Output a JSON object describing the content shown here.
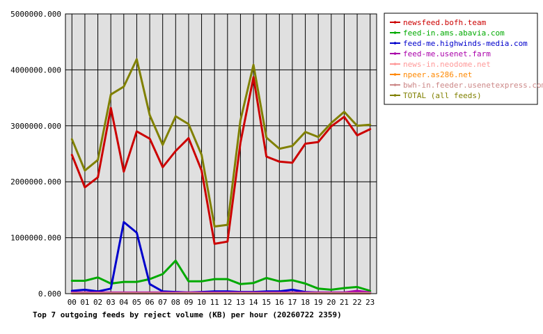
{
  "chart_data": {
    "type": "line",
    "title": "Top 7 outgoing feeds by reject volume (KB) per hour (20260722 2359)",
    "xlabel": "",
    "ylabel": "",
    "ylim": [
      0,
      5000000
    ],
    "y_ticks": [
      "0.000",
      "1000000.000",
      "2000000.000",
      "3000000.000",
      "4000000.000",
      "5000000.000"
    ],
    "categories": [
      "00",
      "01",
      "02",
      "03",
      "04",
      "05",
      "06",
      "07",
      "08",
      "09",
      "10",
      "11",
      "12",
      "13",
      "14",
      "15",
      "16",
      "17",
      "18",
      "19",
      "20",
      "21",
      "22",
      "23"
    ],
    "grid": true,
    "legend_position": "top-right",
    "series": [
      {
        "name": "newsfeed.bofh.team",
        "color": "#cc0000",
        "values": [
          2480000,
          1900000,
          2080000,
          3320000,
          2180000,
          2900000,
          2770000,
          2260000,
          2550000,
          2780000,
          2200000,
          890000,
          930000,
          2700000,
          3870000,
          2450000,
          2360000,
          2340000,
          2680000,
          2710000,
          2990000,
          3160000,
          2830000,
          2940000
        ]
      },
      {
        "name": "feed-in.ams.abavia.com",
        "color": "#00aa00",
        "values": [
          230000,
          230000,
          290000,
          180000,
          210000,
          210000,
          260000,
          350000,
          590000,
          220000,
          220000,
          260000,
          260000,
          170000,
          190000,
          280000,
          220000,
          240000,
          180000,
          90000,
          70000,
          100000,
          120000,
          50000
        ]
      },
      {
        "name": "feed-me.highwinds-media.com",
        "color": "#0000cc",
        "values": [
          50000,
          70000,
          40000,
          90000,
          1280000,
          1090000,
          170000,
          40000,
          30000,
          20000,
          30000,
          40000,
          40000,
          30000,
          30000,
          40000,
          40000,
          70000,
          30000,
          20000,
          20000,
          20000,
          30000,
          20000
        ]
      },
      {
        "name": "feed-me.usenet.farm",
        "color": "#aa00aa",
        "values": [
          20000,
          20000,
          20000,
          20000,
          20000,
          20000,
          20000,
          20000,
          20000,
          20000,
          20000,
          20000,
          20000,
          20000,
          20000,
          20000,
          20000,
          20000,
          20000,
          20000,
          20000,
          20000,
          50000,
          20000
        ]
      },
      {
        "name": "news-in.neodome.net",
        "color": "#ff9999",
        "values": [
          10000,
          10000,
          10000,
          10000,
          10000,
          10000,
          10000,
          10000,
          10000,
          10000,
          10000,
          10000,
          10000,
          10000,
          10000,
          10000,
          10000,
          10000,
          10000,
          10000,
          10000,
          10000,
          10000,
          10000
        ]
      },
      {
        "name": "npeer.as286.net",
        "color": "#ff8800",
        "values": [
          5000,
          5000,
          5000,
          5000,
          5000,
          5000,
          5000,
          5000,
          5000,
          5000,
          5000,
          5000,
          5000,
          5000,
          5000,
          5000,
          5000,
          5000,
          5000,
          5000,
          5000,
          5000,
          5000,
          5000
        ]
      },
      {
        "name": "bwh-in.feeder.usenetexpress.com",
        "color": "#cc8888",
        "values": [
          5000,
          5000,
          5000,
          5000,
          5000,
          5000,
          5000,
          5000,
          5000,
          5000,
          5000,
          5000,
          5000,
          5000,
          5000,
          5000,
          5000,
          5000,
          5000,
          5000,
          5000,
          5000,
          5000,
          5000
        ]
      },
      {
        "name": "TOTAL (all feeds)",
        "color": "#808000",
        "values": [
          2760000,
          2200000,
          2390000,
          3560000,
          3700000,
          4190000,
          3190000,
          2660000,
          3170000,
          3030000,
          2480000,
          1200000,
          1230000,
          3100000,
          4090000,
          2790000,
          2590000,
          2640000,
          2890000,
          2800000,
          3050000,
          3250000,
          3000000,
          3020000
        ]
      }
    ]
  }
}
